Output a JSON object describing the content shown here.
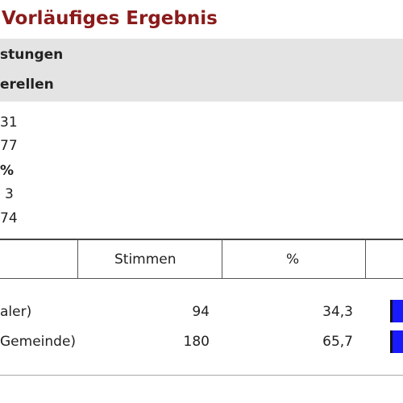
{
  "header": {
    "title": "Vorläufiges Ergebnis"
  },
  "info_band": [
    "stungen",
    "erellen"
  ],
  "summary": [
    "31",
    "77",
    "%",
    "3",
    "74"
  ],
  "table": {
    "header": [
      "Stimmen",
      "%"
    ],
    "rows": [
      [
        "aler)",
        "94",
        "34,3"
      ],
      [
        "Gemeinde)",
        "180",
        "65,7"
      ]
    ]
  }
}
